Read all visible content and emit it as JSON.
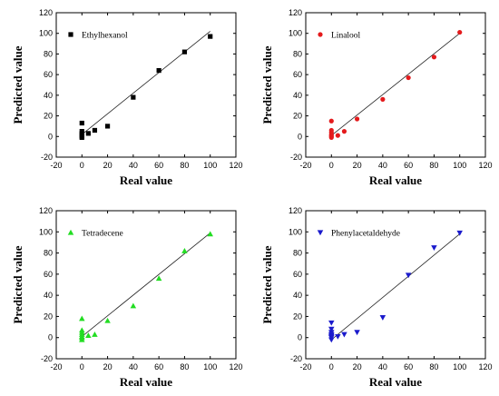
{
  "chart_data": [
    {
      "type": "scatter",
      "xlabel": "Real value",
      "ylabel": "Predicted value",
      "xlim": [
        -20,
        120
      ],
      "ylim": [
        -20,
        120
      ],
      "xticks": [
        -20,
        0,
        20,
        40,
        60,
        80,
        100,
        120
      ],
      "yticks": [
        -20,
        0,
        20,
        40,
        60,
        80,
        100,
        120
      ],
      "legend_position": "top-left",
      "marker": "square",
      "color": "#000000",
      "fit_line": {
        "x": [
          0,
          100
        ],
        "y": [
          2,
          102
        ]
      },
      "series": [
        {
          "name": "Ethylhexanol",
          "x": [
            0,
            0,
            0,
            0,
            0,
            0,
            0,
            5,
            10,
            20,
            40,
            60,
            80,
            100
          ],
          "y": [
            13,
            -1,
            0,
            1,
            2,
            3,
            5,
            3,
            6,
            10,
            38,
            64,
            82,
            97
          ]
        }
      ]
    },
    {
      "type": "scatter",
      "xlabel": "Real value",
      "ylabel": "Predicted value",
      "xlim": [
        -20,
        120
      ],
      "ylim": [
        -20,
        120
      ],
      "xticks": [
        -20,
        0,
        20,
        40,
        60,
        80,
        100,
        120
      ],
      "yticks": [
        -20,
        0,
        20,
        40,
        60,
        80,
        100,
        120
      ],
      "legend_position": "top-left",
      "marker": "circle",
      "color": "#e41a1c",
      "fit_line": {
        "x": [
          0,
          100
        ],
        "y": [
          1,
          100
        ]
      },
      "series": [
        {
          "name": "Linalool",
          "x": [
            0,
            0,
            0,
            0,
            0,
            0,
            0,
            5,
            10,
            20,
            40,
            60,
            80,
            100
          ],
          "y": [
            15,
            -1,
            0,
            1,
            2,
            4,
            6,
            1,
            5,
            17,
            36,
            57,
            77,
            101
          ]
        }
      ]
    },
    {
      "type": "scatter",
      "xlabel": "Real value",
      "ylabel": "Predicted value",
      "xlim": [
        -20,
        120
      ],
      "ylim": [
        -20,
        120
      ],
      "xticks": [
        -20,
        0,
        20,
        40,
        60,
        80,
        100,
        120
      ],
      "yticks": [
        -20,
        0,
        20,
        40,
        60,
        80,
        100,
        120
      ],
      "legend_position": "top-left",
      "marker": "triangle-up",
      "color": "#22dd22",
      "fit_line": {
        "x": [
          0,
          100
        ],
        "y": [
          1,
          99
        ]
      },
      "series": [
        {
          "name": "Tetradecene",
          "x": [
            0,
            0,
            0,
            0,
            0,
            0,
            0,
            5,
            10,
            20,
            40,
            60,
            80,
            100
          ],
          "y": [
            18,
            -2,
            0,
            1,
            3,
            5,
            7,
            2,
            3,
            16,
            30,
            56,
            82,
            98
          ]
        }
      ]
    },
    {
      "type": "scatter",
      "xlabel": "Real value",
      "ylabel": "Predicted value",
      "xlim": [
        -20,
        120
      ],
      "ylim": [
        -20,
        120
      ],
      "xticks": [
        -20,
        0,
        20,
        40,
        60,
        80,
        100,
        120
      ],
      "yticks": [
        -20,
        0,
        20,
        40,
        60,
        80,
        100,
        120
      ],
      "legend_position": "top-left",
      "marker": "triangle-down",
      "color": "#1a1acc",
      "fit_line": {
        "x": [
          0,
          100
        ],
        "y": [
          -2,
          98
        ]
      },
      "series": [
        {
          "name": "Phenylacetaldehyde",
          "x": [
            0,
            0,
            0,
            0,
            0,
            0,
            0,
            0,
            5,
            10,
            20,
            40,
            60,
            80,
            100
          ],
          "y": [
            14,
            -2,
            0,
            1,
            2,
            3,
            5,
            8,
            1,
            3,
            5,
            19,
            59,
            85,
            99
          ]
        }
      ]
    }
  ]
}
